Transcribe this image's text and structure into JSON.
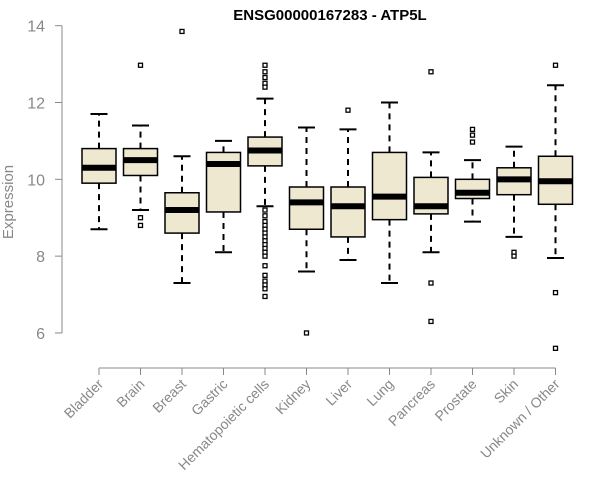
{
  "chart_data": {
    "type": "box",
    "title": "ENSG00000167283 - ATP5L",
    "xlabel": "",
    "ylabel": "Expression",
    "ylim": [
      5.4,
      14.2
    ],
    "yticks": [
      6,
      8,
      10,
      12,
      14
    ],
    "grid": false,
    "legend": "none",
    "colors": {
      "box_fill": "#efe8d0",
      "stroke": "#000000",
      "axis_text": "#888888"
    },
    "categories": [
      "Bladder",
      "Brain",
      "Breast",
      "Gastric",
      "Hematopoietic cells",
      "Kidney",
      "Liver",
      "Lung",
      "Pancreas",
      "Prostate",
      "Skin",
      "Unknown / Other"
    ],
    "boxes": [
      {
        "category": "Bladder",
        "whisker_low": 8.7,
        "q1": 9.9,
        "median": 10.3,
        "q3": 10.8,
        "whisker_high": 11.7,
        "outliers": []
      },
      {
        "category": "Brain",
        "whisker_low": 9.2,
        "q1": 10.1,
        "median": 10.5,
        "q3": 10.8,
        "whisker_high": 11.4,
        "outliers": [
          12.97,
          9.0,
          8.8
        ]
      },
      {
        "category": "Breast",
        "whisker_low": 7.3,
        "q1": 8.6,
        "median": 9.2,
        "q3": 9.65,
        "whisker_high": 10.6,
        "outliers": [
          13.85
        ]
      },
      {
        "category": "Gastric",
        "whisker_low": 8.1,
        "q1": 9.15,
        "median": 10.4,
        "q3": 10.7,
        "whisker_high": 11.0,
        "outliers": []
      },
      {
        "category": "Hematopoietic cells",
        "whisker_low": 9.3,
        "q1": 10.35,
        "median": 10.75,
        "q3": 11.1,
        "whisker_high": 12.1,
        "outliers": [
          12.97,
          12.8,
          12.65,
          12.5,
          12.4,
          9.2,
          9.05,
          8.9,
          8.8,
          8.7,
          8.6,
          8.5,
          8.4,
          8.3,
          8.2,
          8.1,
          8.0,
          7.75,
          7.5,
          7.35,
          7.25,
          7.15,
          6.95
        ]
      },
      {
        "category": "Kidney",
        "whisker_low": 7.6,
        "q1": 8.7,
        "median": 9.4,
        "q3": 9.8,
        "whisker_high": 11.35,
        "outliers": [
          6.0
        ]
      },
      {
        "category": "Liver",
        "whisker_low": 7.9,
        "q1": 8.5,
        "median": 9.3,
        "q3": 9.8,
        "whisker_high": 11.3,
        "outliers": [
          11.8
        ]
      },
      {
        "category": "Lung",
        "whisker_low": 7.3,
        "q1": 8.95,
        "median": 9.55,
        "q3": 10.7,
        "whisker_high": 12.0,
        "outliers": []
      },
      {
        "category": "Pancreas",
        "whisker_low": 8.1,
        "q1": 9.1,
        "median": 9.3,
        "q3": 10.05,
        "whisker_high": 10.7,
        "outliers": [
          12.8,
          7.3,
          6.3
        ]
      },
      {
        "category": "Prostate",
        "whisker_low": 8.9,
        "q1": 9.5,
        "median": 9.65,
        "q3": 10.0,
        "whisker_high": 10.5,
        "outliers": [
          11.3,
          11.15,
          10.97
        ]
      },
      {
        "category": "Skin",
        "whisker_low": 8.5,
        "q1": 9.6,
        "median": 10.0,
        "q3": 10.3,
        "whisker_high": 10.85,
        "outliers": [
          8.1,
          8.0
        ]
      },
      {
        "category": "Unknown / Other",
        "whisker_low": 7.95,
        "q1": 9.35,
        "median": 9.95,
        "q3": 10.6,
        "whisker_high": 12.45,
        "outliers": [
          12.97,
          7.05,
          5.6
        ]
      }
    ]
  }
}
